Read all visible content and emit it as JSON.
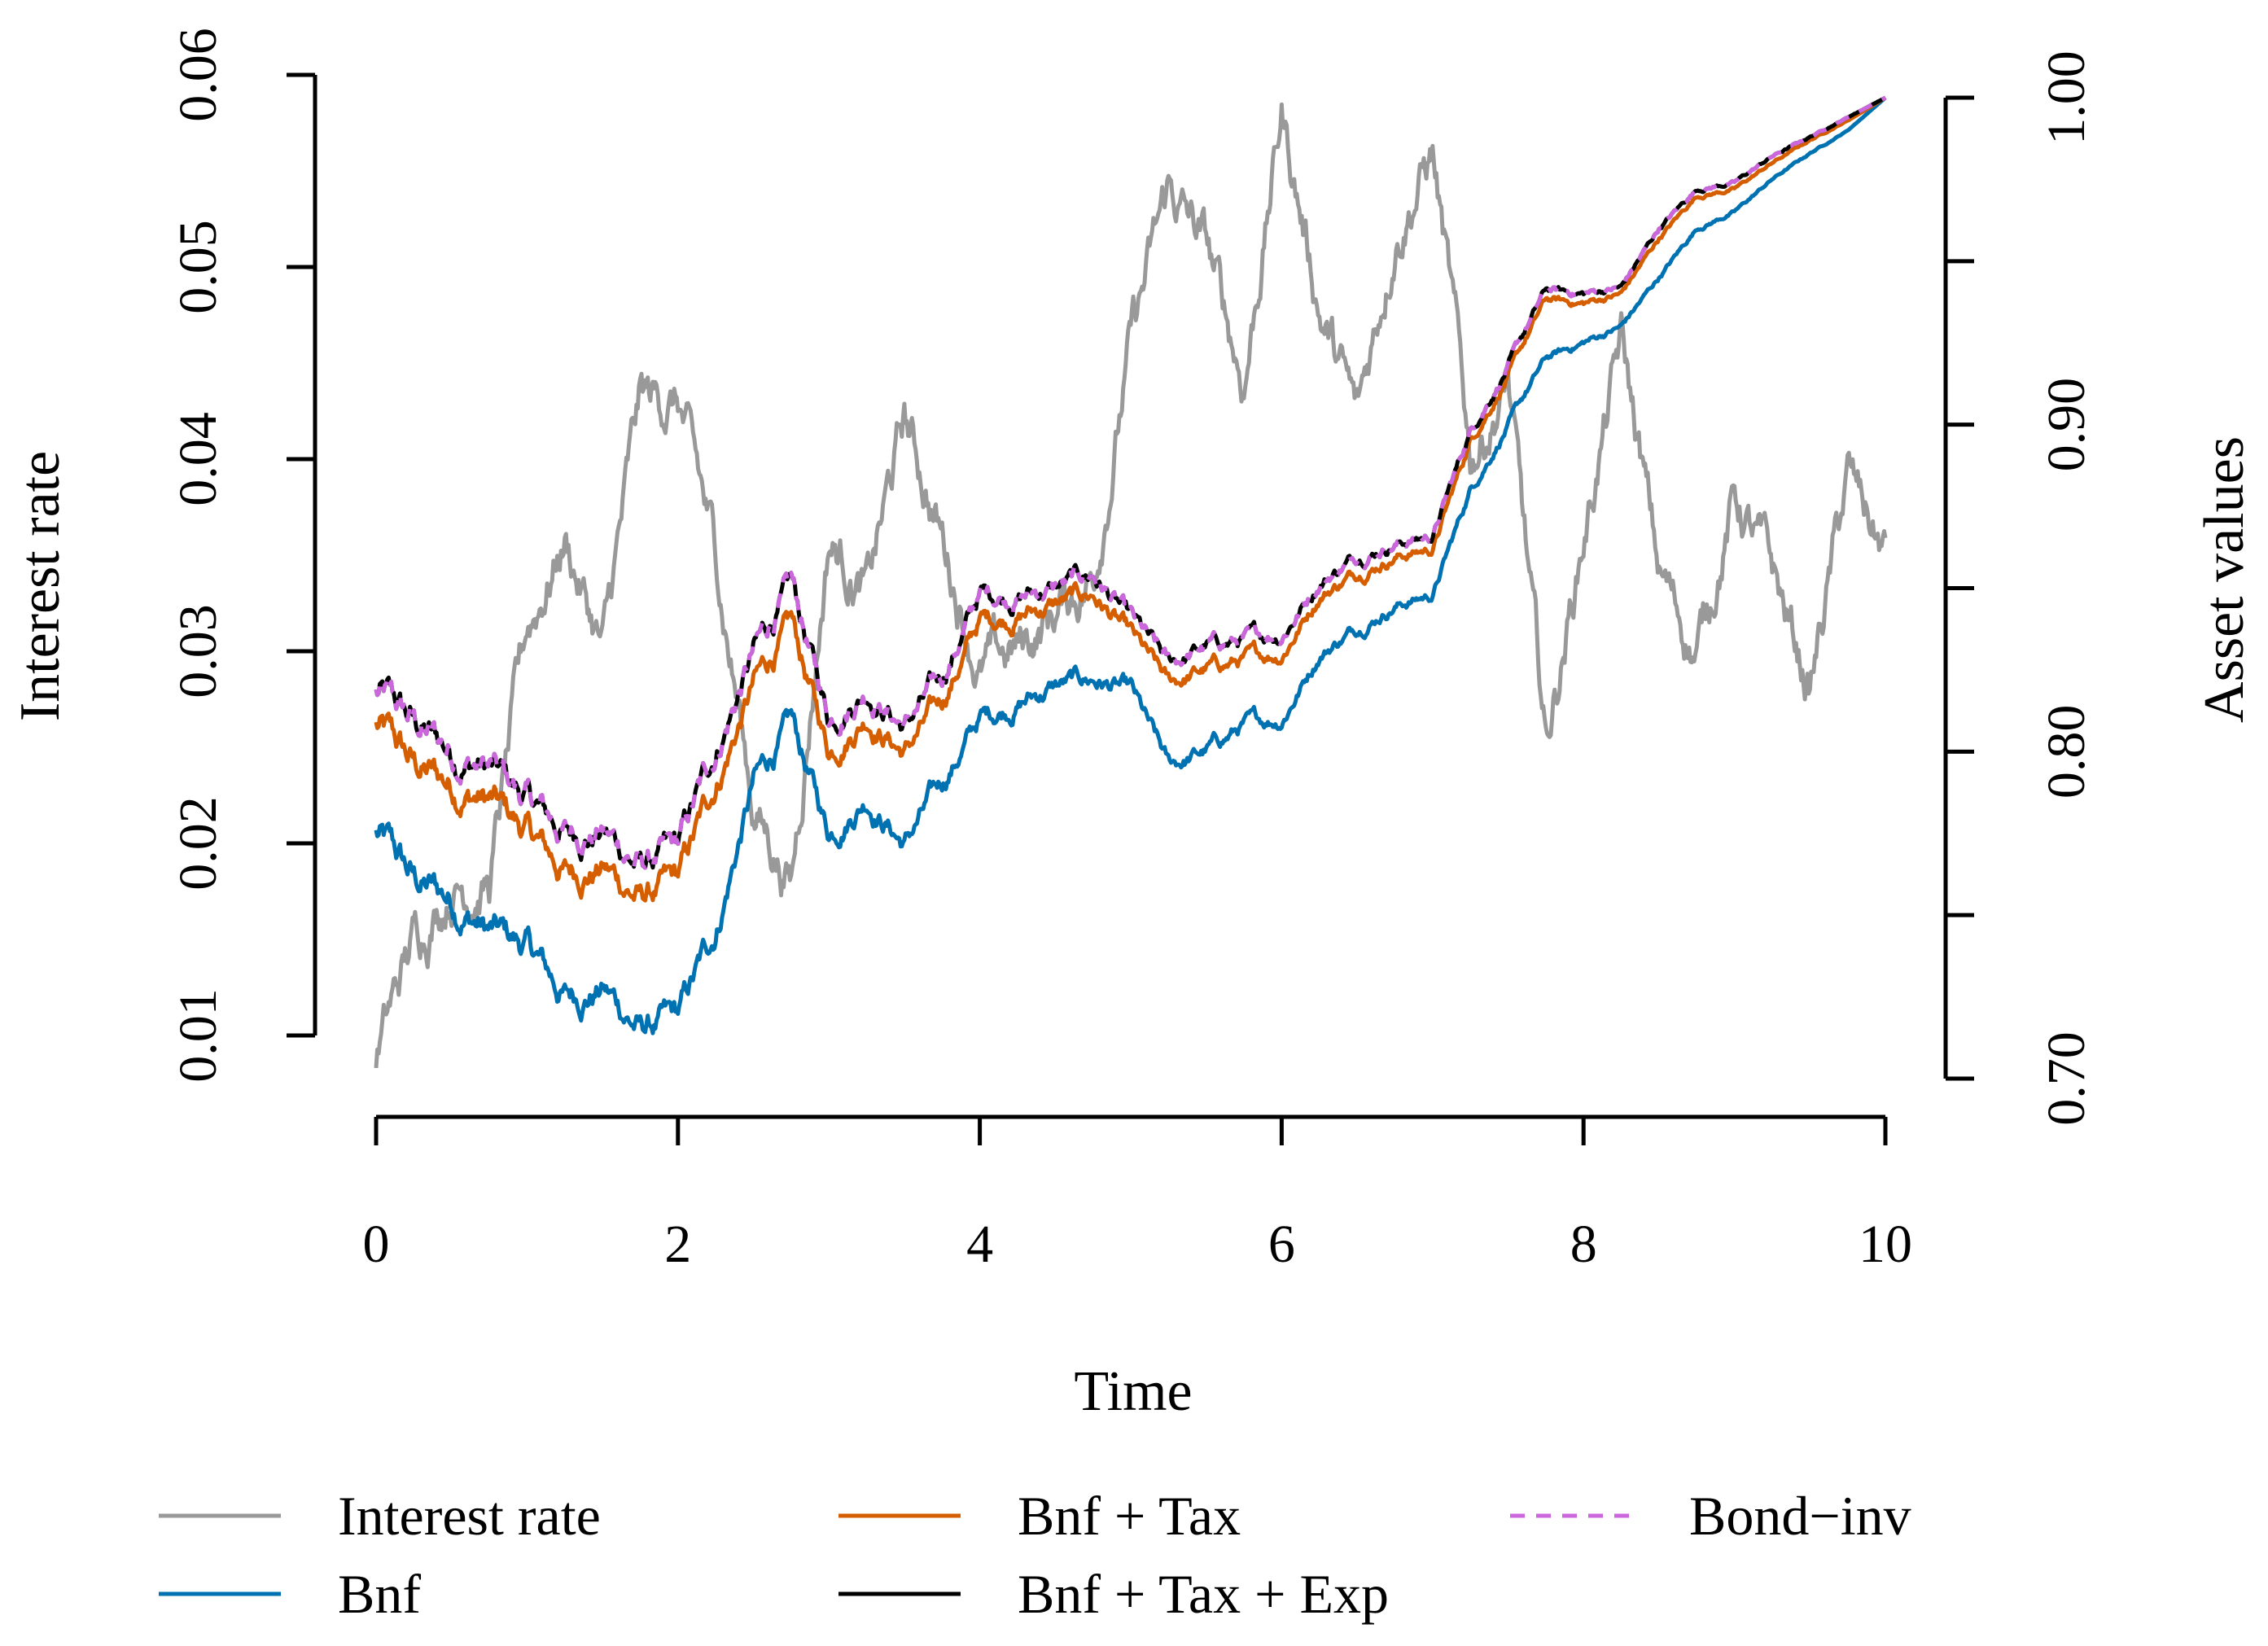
{
  "chart_data": {
    "type": "line",
    "xlabel": "Time",
    "ylabel_left": "Interest rate",
    "ylabel_right": "Asset values",
    "xlim": [
      0,
      10
    ],
    "x_ticks": [
      0,
      2,
      4,
      6,
      8,
      10
    ],
    "x_tick_labels": [
      "0",
      "2",
      "4",
      "6",
      "8",
      "10"
    ],
    "ylim_left": [
      0.01,
      0.06
    ],
    "left_ticks": [
      0.01,
      0.02,
      0.03,
      0.04,
      0.05,
      0.06
    ],
    "left_tick_labels": [
      "0.01",
      "0.02",
      "0.03",
      "0.04",
      "0.05",
      "0.06"
    ],
    "ylim_right": [
      0.7,
      1.0
    ],
    "right_ticks": [
      0.7,
      0.75,
      0.8,
      0.85,
      0.9,
      0.95,
      1.0
    ],
    "right_tick_labels": [
      "0.70",
      "",
      "0.80",
      "",
      "0.90",
      "",
      "1.00"
    ],
    "grid": false,
    "legend_position": "bottom",
    "series": [
      {
        "name": "Interest rate",
        "axis": "left",
        "color": "#999999",
        "dash": "solid",
        "x": [
          0,
          0.25,
          0.5,
          0.75,
          1,
          1.25,
          1.5,
          1.75,
          2,
          2.25,
          2.5,
          2.75,
          3,
          3.25,
          3.5,
          3.75,
          4,
          4.25,
          4.5,
          4.75,
          5,
          5.25,
          5.5,
          5.75,
          6,
          6.25,
          6.5,
          6.75,
          7,
          7.25,
          7.5,
          7.75,
          8,
          8.25,
          8.5,
          8.75,
          9,
          9.25,
          9.5,
          9.75,
          10
        ],
        "values": [
          0.009,
          0.015,
          0.018,
          0.018,
          0.031,
          0.036,
          0.03,
          0.043,
          0.043,
          0.035,
          0.022,
          0.018,
          0.036,
          0.033,
          0.042,
          0.036,
          0.029,
          0.03,
          0.032,
          0.034,
          0.046,
          0.054,
          0.051,
          0.044,
          0.058,
          0.048,
          0.042,
          0.052,
          0.056,
          0.04,
          0.044,
          0.025,
          0.036,
          0.046,
          0.034,
          0.03,
          0.038,
          0.034,
          0.028,
          0.039,
          0.035
        ]
      },
      {
        "name": "Bnf",
        "axis": "right",
        "color": "#0072B2",
        "dash": "solid",
        "x": [
          0,
          0.25,
          0.5,
          0.75,
          1,
          1.25,
          1.5,
          1.75,
          2,
          2.25,
          2.5,
          2.75,
          3,
          3.25,
          3.5,
          3.75,
          4,
          4.25,
          4.5,
          4.75,
          5,
          5.25,
          5.5,
          5.75,
          6,
          6.25,
          6.5,
          6.75,
          7,
          7.25,
          7.5,
          7.75,
          8,
          8.25,
          8.5,
          8.75,
          9,
          9.25,
          9.5,
          9.75,
          10
        ],
        "values": [
          0.775,
          0.76,
          0.755,
          0.745,
          0.74,
          0.725,
          0.728,
          0.715,
          0.718,
          0.745,
          0.79,
          0.808,
          0.775,
          0.787,
          0.772,
          0.79,
          0.81,
          0.815,
          0.82,
          0.822,
          0.818,
          0.795,
          0.8,
          0.808,
          0.81,
          0.83,
          0.838,
          0.845,
          0.848,
          0.88,
          0.9,
          0.92,
          0.925,
          0.93,
          0.945,
          0.96,
          0.965,
          0.975,
          0.983,
          0.99,
          1.0
        ]
      },
      {
        "name": "Bnf + Tax",
        "axis": "right",
        "color": "#D55E00",
        "dash": "solid",
        "x": [
          0,
          0.25,
          0.5,
          0.75,
          1,
          1.25,
          1.5,
          1.75,
          2,
          2.25,
          2.5,
          2.75,
          3,
          3.25,
          3.5,
          3.75,
          4,
          4.25,
          4.5,
          4.75,
          5,
          5.25,
          5.5,
          5.75,
          6,
          6.25,
          6.5,
          6.75,
          7,
          7.25,
          7.5,
          7.75,
          8,
          8.25,
          8.5,
          8.75,
          9,
          9.25,
          9.5,
          9.75,
          10
        ],
        "values": [
          0.808,
          0.795,
          0.79,
          0.785,
          0.775,
          0.763,
          0.765,
          0.755,
          0.76,
          0.79,
          0.82,
          0.838,
          0.8,
          0.812,
          0.8,
          0.815,
          0.84,
          0.842,
          0.845,
          0.848,
          0.835,
          0.82,
          0.825,
          0.828,
          0.83,
          0.848,
          0.855,
          0.86,
          0.862,
          0.895,
          0.915,
          0.938,
          0.937,
          0.94,
          0.957,
          0.97,
          0.972,
          0.98,
          0.987,
          0.993,
          1.0
        ]
      },
      {
        "name": "Bnf + Tax + Exp",
        "axis": "right",
        "color": "#000000",
        "dash": "solid",
        "x": [
          0,
          0.25,
          0.5,
          0.75,
          1,
          1.25,
          1.5,
          1.75,
          2,
          2.25,
          2.5,
          2.75,
          3,
          3.25,
          3.5,
          3.75,
          4,
          4.25,
          4.5,
          4.75,
          5,
          5.25,
          5.5,
          5.75,
          6,
          6.25,
          6.5,
          6.75,
          7,
          7.25,
          7.5,
          7.75,
          8,
          8.25,
          8.5,
          8.75,
          9,
          9.25,
          9.5,
          9.75,
          10
        ],
        "values": [
          0.818,
          0.808,
          0.8,
          0.795,
          0.785,
          0.775,
          0.776,
          0.765,
          0.77,
          0.8,
          0.83,
          0.85,
          0.81,
          0.82,
          0.808,
          0.822,
          0.848,
          0.848,
          0.85,
          0.854,
          0.84,
          0.826,
          0.832,
          0.834,
          0.836,
          0.852,
          0.86,
          0.864,
          0.866,
          0.898,
          0.918,
          0.941,
          0.94,
          0.942,
          0.96,
          0.972,
          0.974,
          0.982,
          0.988,
          0.994,
          1.0
        ]
      },
      {
        "name": "Bond−inv",
        "axis": "right",
        "color": "#CC66DD",
        "dash": "dashed",
        "x": [
          0,
          0.25,
          0.5,
          0.75,
          1,
          1.25,
          1.5,
          1.75,
          2,
          2.25,
          2.5,
          2.75,
          3,
          3.25,
          3.5,
          3.75,
          4,
          4.25,
          4.5,
          4.75,
          5,
          5.25,
          5.5,
          5.75,
          6,
          6.25,
          6.5,
          6.75,
          7,
          7.25,
          7.5,
          7.75,
          8,
          8.25,
          8.5,
          8.75,
          9,
          9.25,
          9.5,
          9.75,
          10
        ],
        "values": [
          0.818,
          0.808,
          0.8,
          0.795,
          0.785,
          0.775,
          0.776,
          0.765,
          0.77,
          0.8,
          0.83,
          0.85,
          0.81,
          0.82,
          0.808,
          0.822,
          0.848,
          0.848,
          0.85,
          0.854,
          0.84,
          0.826,
          0.832,
          0.834,
          0.836,
          0.852,
          0.86,
          0.864,
          0.866,
          0.898,
          0.918,
          0.941,
          0.94,
          0.942,
          0.96,
          0.972,
          0.974,
          0.982,
          0.988,
          0.994,
          1.0
        ]
      }
    ],
    "legend": [
      {
        "label": "Interest rate",
        "color": "#999999",
        "dash": "solid"
      },
      {
        "label": "Bnf",
        "color": "#0072B2",
        "dash": "solid"
      },
      {
        "label": "Bnf + Tax",
        "color": "#D55E00",
        "dash": "solid"
      },
      {
        "label": "Bnf + Tax + Exp",
        "color": "#000000",
        "dash": "solid"
      },
      {
        "label": "Bond−inv",
        "color": "#CC66DD",
        "dash": "dashed"
      }
    ]
  }
}
